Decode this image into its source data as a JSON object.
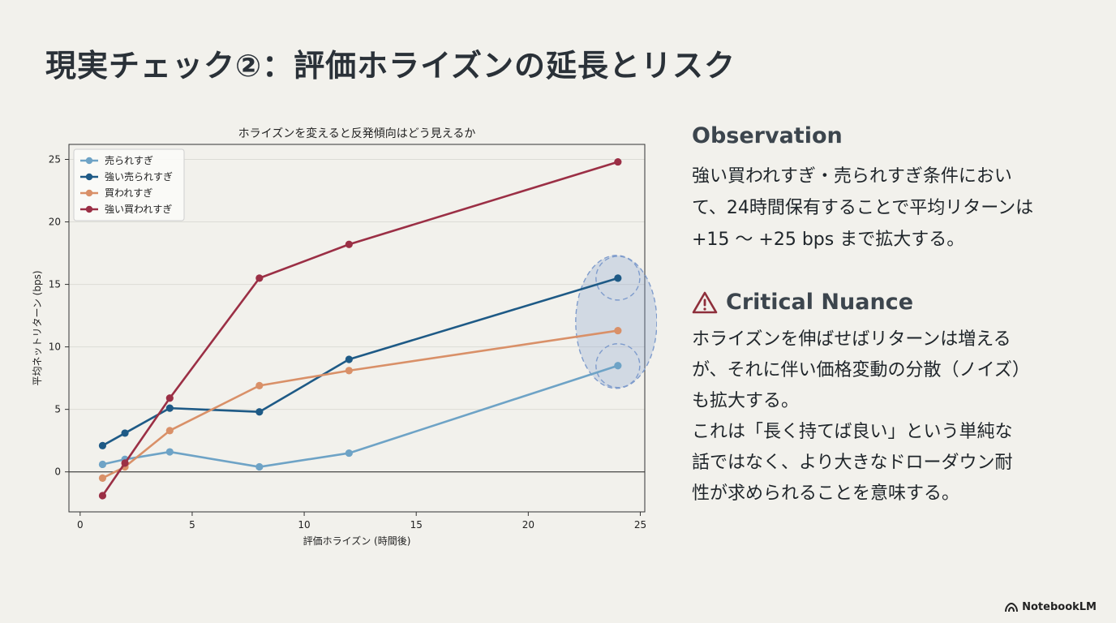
{
  "slide": {
    "title": "現実チェック②：評価ホライズンの延長とリスク",
    "observation": {
      "heading": "Observation",
      "lines": [
        "強い買われすぎ・売られすぎ条件におい",
        "て、24時間保有することで平均リターンは",
        "+15 〜 +25 bps まで拡大する。"
      ]
    },
    "critical": {
      "icon": "warning-triangle-icon",
      "heading": "Critical Nuance",
      "lines": [
        "ホライズンを伸ばせばリターンは増える",
        "が、それに伴い価格変動の分散（ノイズ）",
        "も拡大する。",
        "これは「長く持てば良い」という単純な",
        "話ではなく、より大きなドローダウン耐",
        "性が求められることを意味する。"
      ]
    },
    "logo": "NotebookLM"
  },
  "chart_data": {
    "type": "line",
    "title": "ホライズンを変えると反発傾向はどう見えるか",
    "xlabel": "評価ホライズン (時間後)",
    "ylabel": "平均ネットリターン (bps)",
    "xlim": [
      -0.5,
      25.2
    ],
    "ylim": [
      -3.2,
      26.2
    ],
    "xticks": [
      0,
      5,
      10,
      15,
      20,
      25
    ],
    "yticks": [
      0,
      5,
      10,
      15,
      20,
      25
    ],
    "grid": "horizontal",
    "legend_position": "top-left",
    "x": [
      1,
      2,
      4,
      8,
      12,
      24
    ],
    "series": [
      {
        "name": "売られすぎ",
        "color": "#6ea3c6",
        "values": [
          0.6,
          1.0,
          1.6,
          0.4,
          1.5,
          8.5
        ]
      },
      {
        "name": "強い売られすぎ",
        "color": "#1e5a86",
        "values": [
          2.1,
          3.1,
          5.1,
          4.8,
          9.0,
          15.5
        ]
      },
      {
        "name": "買われすぎ",
        "color": "#d99068",
        "values": [
          -0.5,
          0.4,
          3.3,
          6.9,
          8.1,
          11.3
        ]
      },
      {
        "name": "強い買われすぎ",
        "color": "#9b2f45",
        "values": [
          -1.9,
          0.7,
          5.9,
          15.5,
          18.2,
          24.8
        ]
      }
    ],
    "annotation": {
      "type": "variance-highlight",
      "at_x": 24,
      "color": "#7f9ccc"
    }
  }
}
